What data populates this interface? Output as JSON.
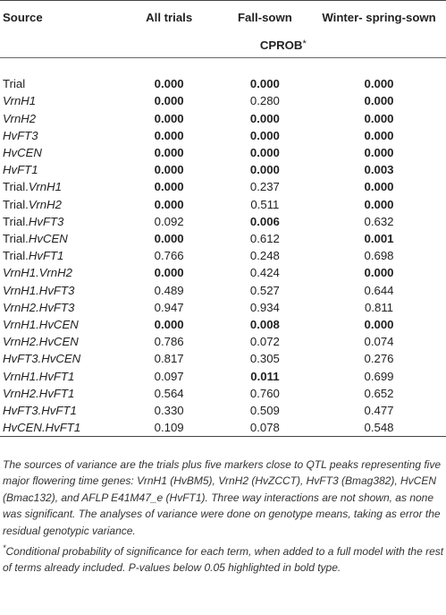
{
  "headers": {
    "source": "Source",
    "all_trials": "All trials",
    "fall_sown": "Fall-sown",
    "winter_spring_sown": "Winter- spring-sown",
    "subheader": "CPROB",
    "subheader_mark": "*"
  },
  "rows": [
    {
      "p1": "Trial",
      "p2": "",
      "p3": "",
      "all": "0.000",
      "fall": "0.000",
      "win": "0.000",
      "b_all": true,
      "b_fall": true,
      "b_win": true
    },
    {
      "p1": "",
      "p2": "",
      "p3": "VrnH1",
      "all": "0.000",
      "fall": "0.280",
      "win": "0.000",
      "b_all": true,
      "b_fall": false,
      "b_win": true
    },
    {
      "p1": "",
      "p2": "",
      "p3": "VrnH2",
      "all": "0.000",
      "fall": "0.000",
      "win": "0.000",
      "b_all": true,
      "b_fall": true,
      "b_win": true
    },
    {
      "p1": "",
      "p2": "",
      "p3": "HvFT3",
      "all": "0.000",
      "fall": "0.000",
      "win": "0.000",
      "b_all": true,
      "b_fall": true,
      "b_win": true
    },
    {
      "p1": "",
      "p2": "",
      "p3": "HvCEN",
      "all": "0.000",
      "fall": "0.000",
      "win": "0.000",
      "b_all": true,
      "b_fall": true,
      "b_win": true
    },
    {
      "p1": "",
      "p2": "",
      "p3": "HvFT1",
      "all": "0.000",
      "fall": "0.000",
      "win": "0.003",
      "b_all": true,
      "b_fall": true,
      "b_win": true
    },
    {
      "p1": "Trial",
      "p2": ".",
      "p3": "VrnH1",
      "all": "0.000",
      "fall": "0.237",
      "win": "0.000",
      "b_all": true,
      "b_fall": false,
      "b_win": true
    },
    {
      "p1": "Trial",
      "p2": ".",
      "p3": "VrnH2",
      "all": "0.000",
      "fall": "0.511",
      "win": "0.000",
      "b_all": true,
      "b_fall": false,
      "b_win": true
    },
    {
      "p1": "Trial",
      "p2": ".",
      "p3": "HvFT3",
      "all": "0.092",
      "fall": "0.006",
      "win": "0.632",
      "b_all": false,
      "b_fall": true,
      "b_win": false
    },
    {
      "p1": "Trial",
      "p2": ".",
      "p3": "HvCEN",
      "all": "0.000",
      "fall": "0.612",
      "win": "0.001",
      "b_all": true,
      "b_fall": false,
      "b_win": true
    },
    {
      "p1": "Trial",
      "p2": ".",
      "p3": "HvFT1",
      "all": "0.766",
      "fall": "0.248",
      "win": "0.698",
      "b_all": false,
      "b_fall": false,
      "b_win": false
    },
    {
      "p1": "",
      "p2": "",
      "p3": "VrnH1.VrnH2",
      "all": "0.000",
      "fall": "0.424",
      "win": "0.000",
      "b_all": true,
      "b_fall": false,
      "b_win": true
    },
    {
      "p1": "",
      "p2": "",
      "p3": "VrnH1.HvFT3",
      "all": "0.489",
      "fall": "0.527",
      "win": "0.644",
      "b_all": false,
      "b_fall": false,
      "b_win": false
    },
    {
      "p1": "",
      "p2": "",
      "p3": "VrnH2.HvFT3",
      "all": "0.947",
      "fall": "0.934",
      "win": "0.811",
      "b_all": false,
      "b_fall": false,
      "b_win": false
    },
    {
      "p1": "",
      "p2": "",
      "p3": "VrnH1.HvCEN",
      "all": "0.000",
      "fall": "0.008",
      "win": "0.000",
      "b_all": true,
      "b_fall": true,
      "b_win": true
    },
    {
      "p1": "",
      "p2": "",
      "p3": "VrnH2.HvCEN",
      "all": "0.786",
      "fall": "0.072",
      "win": "0.074",
      "b_all": false,
      "b_fall": false,
      "b_win": false
    },
    {
      "p1": "",
      "p2": "",
      "p3": "HvFT3.HvCEN",
      "all": "0.817",
      "fall": "0.305",
      "win": "0.276",
      "b_all": false,
      "b_fall": false,
      "b_win": false
    },
    {
      "p1": "",
      "p2": "",
      "p3": "VrnH1.HvFT1",
      "all": "0.097",
      "fall": "0.011",
      "win": "0.699",
      "b_all": false,
      "b_fall": true,
      "b_win": false
    },
    {
      "p1": "",
      "p2": "",
      "p3": "VrnH2.HvFT1",
      "all": "0.564",
      "fall": "0.760",
      "win": "0.652",
      "b_all": false,
      "b_fall": false,
      "b_win": false
    },
    {
      "p1": "",
      "p2": "",
      "p3": "HvFT3.HvFT1",
      "all": "0.330",
      "fall": "0.509",
      "win": "0.477",
      "b_all": false,
      "b_fall": false,
      "b_win": false
    },
    {
      "p1": "",
      "p2": "",
      "p3": "HvCEN.HvFT1",
      "all": "0.109",
      "fall": "0.078",
      "win": "0.548",
      "b_all": false,
      "b_fall": false,
      "b_win": false
    }
  ],
  "notes": {
    "note1": "The sources of variance are the trials plus five markers close to QTL peaks representing five major flowering time genes: VrnH1 (HvBM5), VrnH2 (HvZCCT), HvFT3 (Bmag382), HvCEN (Bmac132), and AFLP E41M47_e (HvFT1). Three way interactions are not shown, as none was significant. The analyses of variance were done on genotype means, taking as error the residual genotypic variance.",
    "note2_mark": "*",
    "note2": "Conditional probability of significance for each term, when added to a full model with the rest of terms already included. P-values below 0.05 highlighted in bold type."
  }
}
